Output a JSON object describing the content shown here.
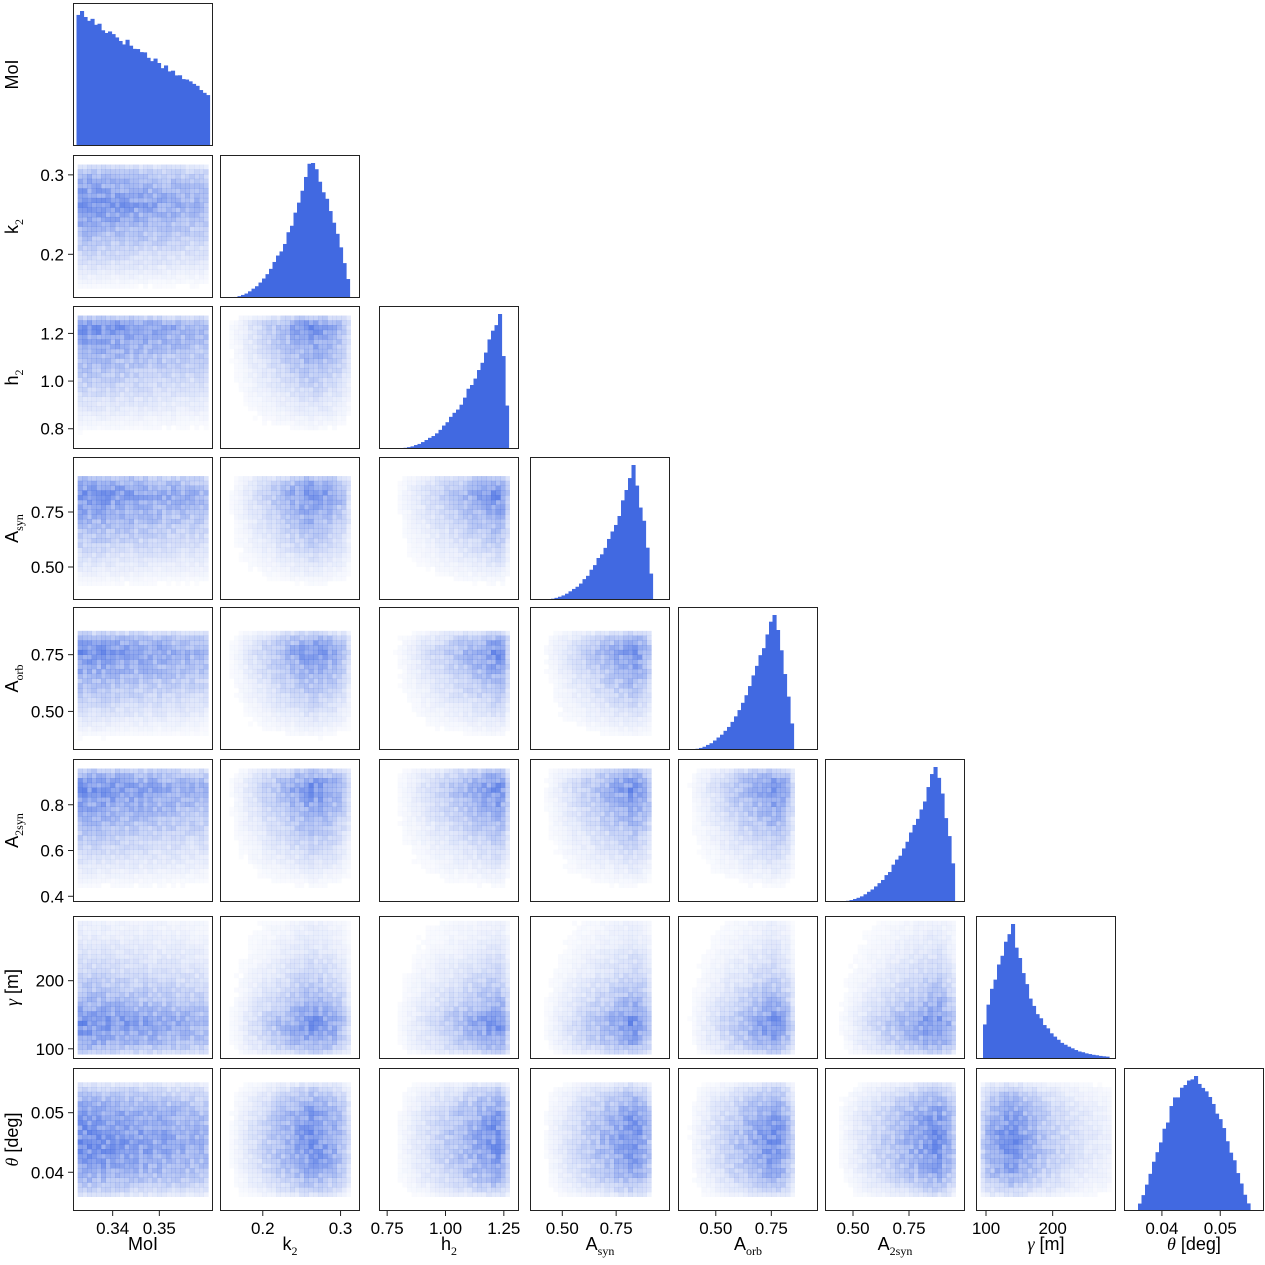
{
  "chart_data": {
    "type": "corner",
    "color": "#4169e1",
    "variables": [
      {
        "key": "moi",
        "label": "MoI",
        "range": [
          0.3315,
          0.3615
        ],
        "ticks": [
          0.34,
          0.35
        ],
        "tick_labels": [
          "0.34",
          "0.35"
        ]
      },
      {
        "key": "k2",
        "label": "k2",
        "range": [
          0.145,
          0.325
        ],
        "ticks": [
          0.2,
          0.3
        ],
        "tick_labels": [
          "0.2",
          "0.3"
        ]
      },
      {
        "key": "h2",
        "label": "h2",
        "range": [
          0.715,
          1.315
        ],
        "ticks": [
          0.75,
          1.0,
          1.25
        ],
        "tick_labels": [
          "0.75",
          "1.00",
          "1.25"
        ],
        "y_ticks": [
          0.8,
          1.0,
          1.2
        ],
        "y_tick_labels": [
          "0.8",
          "1.0",
          "1.2"
        ]
      },
      {
        "key": "asyn",
        "label": "Asyn",
        "range": [
          0.35,
          1.0
        ],
        "ticks": [
          0.5,
          0.75
        ],
        "tick_labels": [
          "0.50",
          "0.75"
        ]
      },
      {
        "key": "aorb",
        "label": "Aorb",
        "range": [
          0.33,
          0.96
        ],
        "ticks": [
          0.5,
          0.75
        ],
        "tick_labels": [
          "0.50",
          "0.75"
        ]
      },
      {
        "key": "a2syn",
        "label": "A2syn",
        "range": [
          0.375,
          1.0
        ],
        "ticks": [
          0.5,
          0.75
        ],
        "tick_labels": [
          "0.50",
          "0.75"
        ],
        "y_ticks": [
          0.4,
          0.6,
          0.8
        ],
        "y_tick_labels": [
          "0.4",
          "0.6",
          "0.8"
        ]
      },
      {
        "key": "gamma",
        "label": "γ [m]",
        "range": [
          85,
          295
        ],
        "ticks": [
          100,
          200
        ],
        "tick_labels": [
          "100",
          "200"
        ]
      },
      {
        "key": "theta",
        "label": "θ [deg]",
        "range": [
          0.0335,
          0.0575
        ],
        "ticks": [
          0.04,
          0.05
        ],
        "tick_labels": [
          "0.04",
          "0.05"
        ]
      }
    ],
    "marginals": [
      {
        "var": "moi",
        "shape": "uniform_decreasing",
        "from": 0.3325,
        "to": 0.3605,
        "start": 0.98,
        "end": 0.38
      },
      {
        "var": "k2",
        "shape": "left_skewed",
        "peak": 0.262,
        "lo": 0.148,
        "hi": 0.312
      },
      {
        "var": "h2",
        "shape": "left_skewed",
        "peak": 1.232,
        "lo": 0.75,
        "hi": 1.27
      },
      {
        "var": "asyn",
        "shape": "left_skewed",
        "peak": 0.83,
        "lo": 0.38,
        "hi": 0.92
      },
      {
        "var": "aorb",
        "shape": "left_skewed",
        "peak": 0.76,
        "lo": 0.35,
        "hi": 0.85
      },
      {
        "var": "a2syn",
        "shape": "left_skewed",
        "peak": 0.87,
        "lo": 0.4,
        "hi": 0.96
      },
      {
        "var": "gamma",
        "shape": "right_skewed",
        "peak": 140,
        "lo": 93,
        "hi": 287
      },
      {
        "var": "theta",
        "shape": "bell",
        "peak": 0.0445,
        "lo": 0.0355,
        "hi": 0.0555
      }
    ]
  }
}
